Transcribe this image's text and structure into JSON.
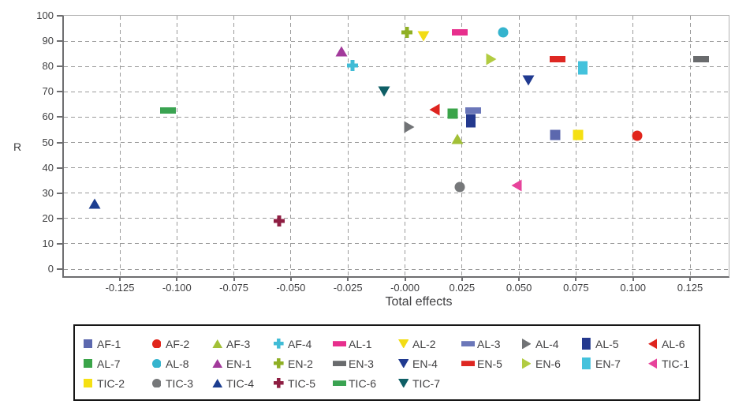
{
  "chart_data": {
    "type": "scatter",
    "title": "",
    "xlabel": "Total effects",
    "ylabel": "R",
    "xlim": [
      -0.1495,
      0.1425
    ],
    "ylim": [
      0,
      100
    ],
    "grid": "dashed",
    "legend_position": "bottom",
    "x_ticks": [
      {
        "v": -0.125,
        "label": "-0.125"
      },
      {
        "v": -0.1,
        "label": "-0.100"
      },
      {
        "v": -0.075,
        "label": "-0.075"
      },
      {
        "v": -0.05,
        "label": "-0.050"
      },
      {
        "v": -0.025,
        "label": "-0.025"
      },
      {
        "v": 0.0,
        "label": "-0.000"
      },
      {
        "v": 0.025,
        "label": "0.025"
      },
      {
        "v": 0.05,
        "label": "0.050"
      },
      {
        "v": 0.075,
        "label": "0.075"
      },
      {
        "v": 0.1,
        "label": "0.100"
      },
      {
        "v": 0.125,
        "label": "0.125"
      }
    ],
    "y_ticks": [
      {
        "v": 0,
        "label": "0"
      },
      {
        "v": 10,
        "label": "10"
      },
      {
        "v": 20,
        "label": "20"
      },
      {
        "v": 30,
        "label": "30"
      },
      {
        "v": 40,
        "label": "40"
      },
      {
        "v": 50,
        "label": "50"
      },
      {
        "v": 60,
        "label": "60"
      },
      {
        "v": 70,
        "label": "70"
      },
      {
        "v": 80,
        "label": "80"
      },
      {
        "v": 90,
        "label": "90"
      },
      {
        "v": 100,
        "label": "100"
      }
    ],
    "series": [
      {
        "name": "AF-1",
        "marker": "square",
        "color": "#5C68AE",
        "x": 0.066,
        "y": 53
      },
      {
        "name": "AF-2",
        "marker": "circle",
        "color": "#E1251B",
        "x": 0.102,
        "y": 52.5
      },
      {
        "name": "AF-3",
        "marker": "tri-up",
        "color": "#A2C037",
        "x": 0.023,
        "y": 51.5
      },
      {
        "name": "AF-4",
        "marker": "plus",
        "color": "#41BCD6",
        "x": -0.023,
        "y": 80.5
      },
      {
        "name": "AL-1",
        "marker": "hbar",
        "color": "#E72F8D",
        "x": 0.024,
        "y": 93.5
      },
      {
        "name": "AL-2",
        "marker": "tri-down",
        "color": "#F2DC15",
        "x": 0.008,
        "y": 92
      },
      {
        "name": "AL-3",
        "marker": "hbar",
        "color": "#6B77B9",
        "x": 0.03,
        "y": 62.5
      },
      {
        "name": "AL-4",
        "marker": "tri-right",
        "color": "#717376",
        "x": 0.002,
        "y": 56
      },
      {
        "name": "AL-5",
        "marker": "vbar",
        "color": "#24398E",
        "x": 0.029,
        "y": 58.5
      },
      {
        "name": "AL-6",
        "marker": "tri-left",
        "color": "#DE241F",
        "x": 0.013,
        "y": 63
      },
      {
        "name": "AL-7",
        "marker": "square",
        "color": "#3AA449",
        "x": 0.021,
        "y": 61.5
      },
      {
        "name": "AL-8",
        "marker": "circle",
        "color": "#35B4CE",
        "x": 0.043,
        "y": 93.5
      },
      {
        "name": "EN-1",
        "marker": "tri-up",
        "color": "#A23A9B",
        "x": -0.028,
        "y": 86
      },
      {
        "name": "EN-2",
        "marker": "plus",
        "color": "#8FAF24",
        "x": 0.001,
        "y": 93.5
      },
      {
        "name": "EN-3",
        "marker": "hbar",
        "color": "#696B6D",
        "x": 0.13,
        "y": 83
      },
      {
        "name": "EN-4",
        "marker": "tri-down",
        "color": "#203A90",
        "x": 0.054,
        "y": 74.5
      },
      {
        "name": "EN-5",
        "marker": "hbar",
        "color": "#DE2722",
        "x": 0.067,
        "y": 83
      },
      {
        "name": "EN-6",
        "marker": "tri-right",
        "color": "#B2CC41",
        "x": 0.038,
        "y": 83
      },
      {
        "name": "EN-7",
        "marker": "vbar",
        "color": "#44C2DC",
        "x": 0.078,
        "y": 79.5
      },
      {
        "name": "TIC-1",
        "marker": "tri-left",
        "color": "#E7439B",
        "x": 0.049,
        "y": 33
      },
      {
        "name": "TIC-2",
        "marker": "square",
        "color": "#F5E013",
        "x": 0.076,
        "y": 53
      },
      {
        "name": "TIC-3",
        "marker": "circle",
        "color": "#76787A",
        "x": 0.024,
        "y": 32.5
      },
      {
        "name": "TIC-4",
        "marker": "tri-up",
        "color": "#1C3E90",
        "x": -0.136,
        "y": 26
      },
      {
        "name": "TIC-5",
        "marker": "plus",
        "color": "#8E1E42",
        "x": -0.055,
        "y": 19
      },
      {
        "name": "TIC-6",
        "marker": "hbar",
        "color": "#3AA351",
        "x": -0.104,
        "y": 62.5
      },
      {
        "name": "TIC-7",
        "marker": "tri-down",
        "color": "#0F5F66",
        "x": -0.009,
        "y": 70
      }
    ],
    "colors": {
      "grid": "#9b9b9b",
      "axis": "#6e6e70",
      "frame": "#b3b3b3",
      "text": "#3f3f41",
      "legend_border": "#161616"
    }
  }
}
